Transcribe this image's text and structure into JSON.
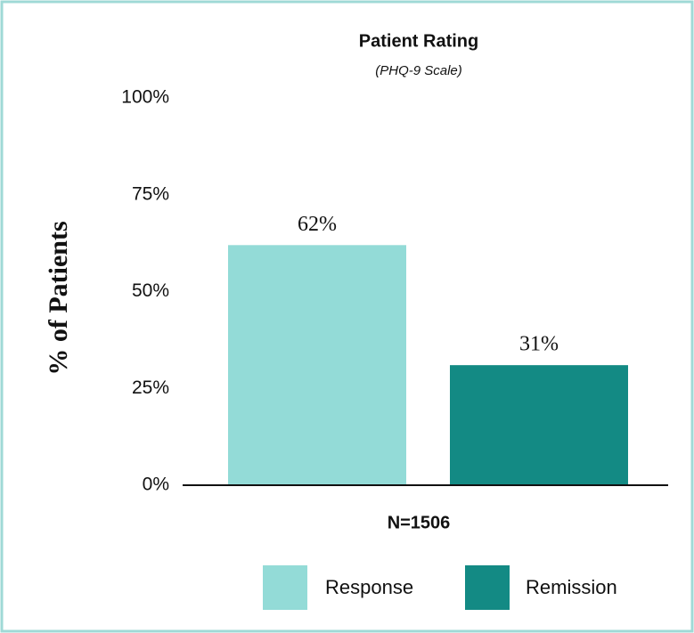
{
  "chart_data": {
    "type": "bar",
    "title": "Patient Rating",
    "subtitle": "(PHQ-9 Scale)",
    "xlabel": "N=1506",
    "ylabel": "% of Patients",
    "categories": [
      "Response",
      "Remission"
    ],
    "values": [
      62,
      31
    ],
    "value_labels": [
      "62%",
      "31%"
    ],
    "colors": [
      "#93dbd7",
      "#138a84"
    ],
    "ylim": [
      0,
      100
    ],
    "yticks": [
      {
        "value": 0,
        "label": "0%"
      },
      {
        "value": 25,
        "label": "25%"
      },
      {
        "value": 50,
        "label": "50%"
      },
      {
        "value": 75,
        "label": "75%"
      },
      {
        "value": 100,
        "label": "100%"
      }
    ],
    "grid": false,
    "legend": "bottom"
  }
}
